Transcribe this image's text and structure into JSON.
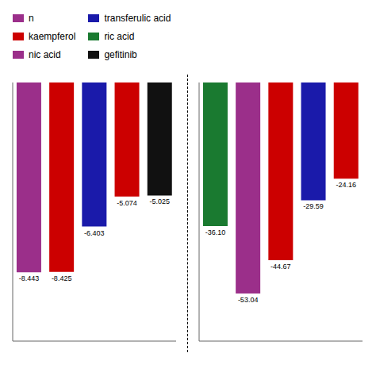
{
  "legend_entries": [
    {
      "label": "n",
      "color": "#9b2f8a"
    },
    {
      "label": "kaempferol",
      "color": "#cc0000"
    },
    {
      "label": "nic acid",
      "color": "#9b2f8a"
    },
    {
      "label": "transferulic acid",
      "color": "#1a1aaa"
    },
    {
      "label": "ric acid",
      "color": "#1a7a30"
    },
    {
      "label": "gefitinib",
      "color": "#111111"
    }
  ],
  "chart_data": [
    {
      "type": "bar",
      "categories": [
        null,
        null,
        null,
        null,
        null
      ],
      "values": [
        -8.443,
        -8.425,
        -6.403,
        -5.074,
        -5.025
      ],
      "colors": [
        "#9b2f8a",
        "#cc0000",
        "#1a1aaa",
        "#cc0000",
        "#111111"
      ],
      "ylim": [
        -11.5,
        0
      ],
      "data_labels": true,
      "tick_labels": false
    },
    {
      "type": "bar",
      "categories": [
        null,
        null,
        null,
        null,
        null
      ],
      "values": [
        -36.1,
        -53.04,
        -44.67,
        -29.59,
        -24.16
      ],
      "value_labels": [
        "-36.10",
        "-53.04",
        "-44.67",
        "-29.59",
        "-24.16"
      ],
      "colors": [
        "#1a7a30",
        "#9b2f8a",
        "#cc0000",
        "#1a1aaa",
        "#cc0000"
      ],
      "ylim": [
        -65,
        0
      ],
      "data_labels": true,
      "tick_labels": false
    }
  ]
}
